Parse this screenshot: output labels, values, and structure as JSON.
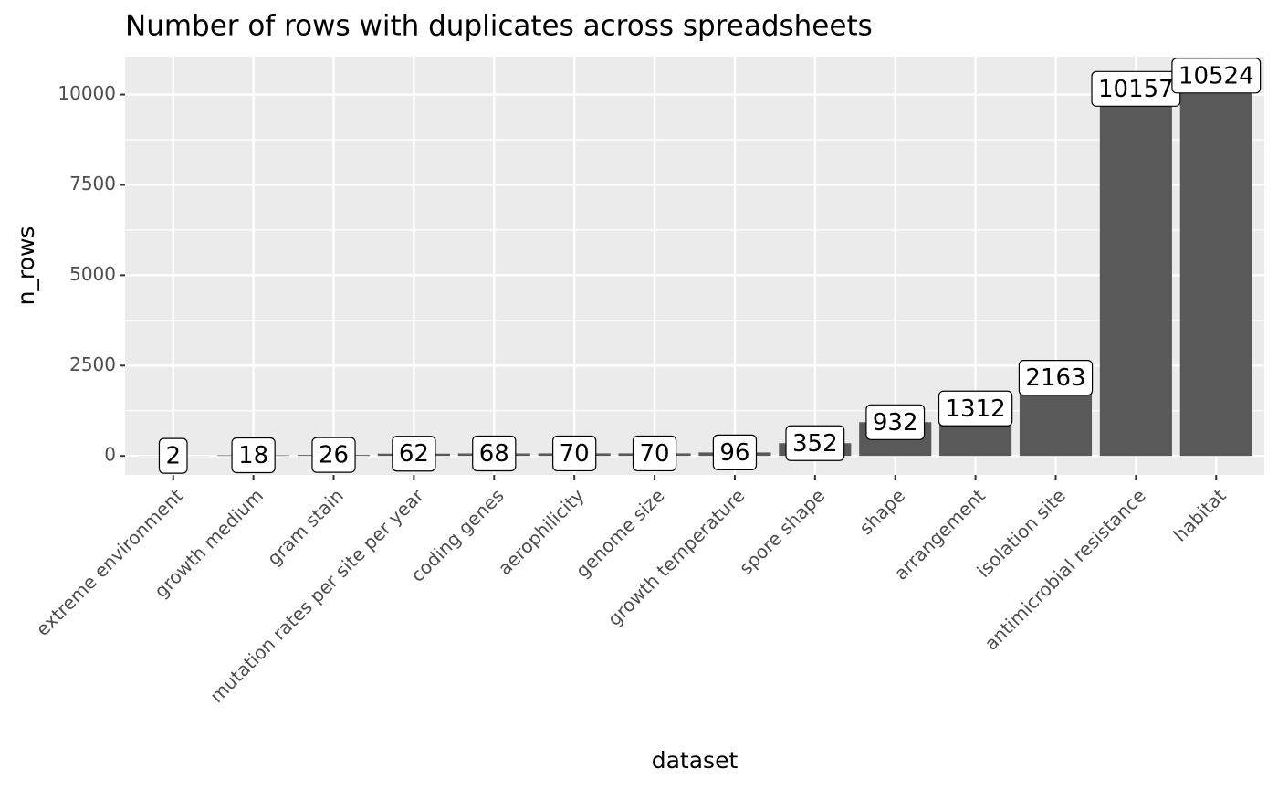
{
  "chart_data": {
    "type": "bar",
    "title": "Number of rows with duplicates across spreadsheets",
    "x_label": "dataset",
    "y_label": "n_rows",
    "categories": [
      "extreme environment",
      "growth medium",
      "gram stain",
      "mutation rates per site per year",
      "coding genes",
      "aerophilicity",
      "genome size",
      "growth temperature",
      "spore shape",
      "shape",
      "arrangement",
      "isolation site",
      "antimicrobial resistance",
      "habitat"
    ],
    "values": [
      2,
      18,
      26,
      62,
      68,
      70,
      70,
      96,
      352,
      932,
      1312,
      2163,
      10157,
      10524
    ],
    "color": "#595959",
    "ylim": [
      -526,
      11050
    ],
    "yticks": [
      0,
      2500,
      5000,
      7500,
      10000
    ],
    "grid": true
  }
}
